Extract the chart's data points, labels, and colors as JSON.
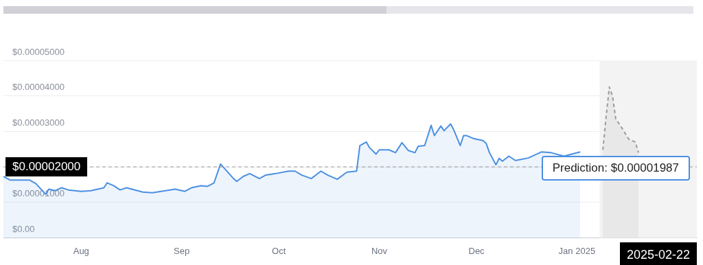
{
  "chart_data": {
    "type": "area",
    "grid": "y",
    "legend": false,
    "marker": "none",
    "xlim": [
      "2024-07-08",
      "2025-02-07"
    ],
    "xticks": [
      {
        "value": "2024-08-01",
        "label": "Aug"
      },
      {
        "value": "2024-09-01",
        "label": "Sep"
      },
      {
        "value": "2024-10-01",
        "label": "Oct"
      },
      {
        "value": "2024-11-01",
        "label": "Nov"
      },
      {
        "value": "2024-12-01",
        "label": "Dec"
      },
      {
        "value": "2025-01-01",
        "label": "Jan 2025"
      }
    ],
    "ylim": [
      0,
      5e-05
    ],
    "yticks": [
      {
        "value": 0,
        "label": "$0.00"
      },
      {
        "value": 1e-05,
        "label": "$0.00001000"
      },
      {
        "value": 2e-05,
        "label": null
      },
      {
        "value": 3e-05,
        "label": "$0.00003000"
      },
      {
        "value": 4e-05,
        "label": "$0.00004000"
      },
      {
        "value": 5e-05,
        "label": "$0.00005000"
      }
    ],
    "bands": [
      {
        "axis": "x",
        "from": "2025-01-08",
        "to": "2025-02-07",
        "color": "#f3f3f3"
      }
    ],
    "ref_lines": [
      {
        "axis": "y",
        "value": 2e-05,
        "label": "$0.00002000",
        "color": "#999999",
        "line_style": "dashed"
      }
    ],
    "annotations": [
      "Prediction: $0.00001987",
      "2025-02-22"
    ],
    "series": [
      {
        "type": "area",
        "color": "#4a8fe2",
        "line_style": "solid",
        "x": [
          "2024-07-08",
          "2024-07-10",
          "2024-07-16",
          "2024-07-18",
          "2024-07-20",
          "2024-07-21",
          "2024-07-22",
          "2024-07-24",
          "2024-07-26",
          "2024-07-28",
          "2024-08-01",
          "2024-08-04",
          "2024-08-08",
          "2024-08-09",
          "2024-08-11",
          "2024-08-13",
          "2024-08-15",
          "2024-08-20",
          "2024-08-23",
          "2024-08-27",
          "2024-08-30",
          "2024-09-02",
          "2024-09-04",
          "2024-09-07",
          "2024-09-09",
          "2024-09-11",
          "2024-09-13",
          "2024-09-14",
          "2024-09-17",
          "2024-09-18",
          "2024-09-20",
          "2024-09-22",
          "2024-09-25",
          "2024-09-27",
          "2024-09-30",
          "2024-10-04",
          "2024-10-06",
          "2024-10-08",
          "2024-10-11",
          "2024-10-14",
          "2024-10-16",
          "2024-10-19",
          "2024-10-22",
          "2024-10-25",
          "2024-10-26",
          "2024-10-28",
          "2024-10-29",
          "2024-10-31",
          "2024-11-01",
          "2024-11-04",
          "2024-11-06",
          "2024-11-08",
          "2024-11-10",
          "2024-11-12",
          "2024-11-13",
          "2024-11-15",
          "2024-11-17",
          "2024-11-18",
          "2024-11-20",
          "2024-11-21",
          "2024-11-23",
          "2024-11-24",
          "2024-11-26",
          "2024-11-27",
          "2024-11-28",
          "2024-11-30",
          "2024-12-03",
          "2024-12-04",
          "2024-12-05",
          "2024-12-07",
          "2024-12-08",
          "2024-12-09",
          "2024-12-11",
          "2024-12-13",
          "2024-12-17",
          "2024-12-21",
          "2024-12-24",
          "2024-12-28",
          "2025-01-02"
        ],
        "values": [
          1.73e-05,
          1.63e-05,
          1.63e-05,
          1.53e-05,
          1.33e-05,
          1.23e-05,
          1.37e-05,
          1.33e-05,
          1.41e-05,
          1.35e-05,
          1.31e-05,
          1.33e-05,
          1.41e-05,
          1.55e-05,
          1.47e-05,
          1.35e-05,
          1.41e-05,
          1.29e-05,
          1.27e-05,
          1.33e-05,
          1.37e-05,
          1.31e-05,
          1.41e-05,
          1.47e-05,
          1.45e-05,
          1.55e-05,
          2.08e-05,
          1.98e-05,
          1.67e-05,
          1.59e-05,
          1.73e-05,
          1.81e-05,
          1.67e-05,
          1.77e-05,
          1.81e-05,
          1.88e-05,
          1.88e-05,
          1.77e-05,
          1.67e-05,
          1.88e-05,
          1.77e-05,
          1.65e-05,
          1.85e-05,
          1.88e-05,
          2.6e-05,
          2.7e-05,
          2.54e-05,
          2.36e-05,
          2.48e-05,
          2.48e-05,
          2.4e-05,
          2.68e-05,
          2.46e-05,
          2.4e-05,
          2.58e-05,
          2.6e-05,
          3.17e-05,
          2.88e-05,
          3.15e-05,
          3.02e-05,
          3.21e-05,
          3.04e-05,
          2.6e-05,
          2.88e-05,
          2.88e-05,
          2.8e-05,
          2.74e-05,
          2.66e-05,
          2.4e-05,
          2.06e-05,
          2.24e-05,
          2.16e-05,
          2.3e-05,
          2.18e-05,
          2.25e-05,
          2.42e-05,
          2.4e-05,
          2.3e-05,
          2.42e-05
        ]
      },
      {
        "type": "area",
        "color": "#9a9a9a",
        "line_style": "dashed",
        "x": [
          "2025-01-09",
          "2025-01-10",
          "2025-01-11",
          "2025-01-12",
          "2025-01-13",
          "2025-01-15",
          "2025-01-17",
          "2025-01-19",
          "2025-01-20"
        ],
        "values": [
          2.48e-05,
          3.41e-05,
          4.25e-05,
          3.99e-05,
          3.35e-05,
          3.08e-05,
          2.78e-05,
          2.7e-05,
          2.4e-05
        ]
      }
    ]
  }
}
